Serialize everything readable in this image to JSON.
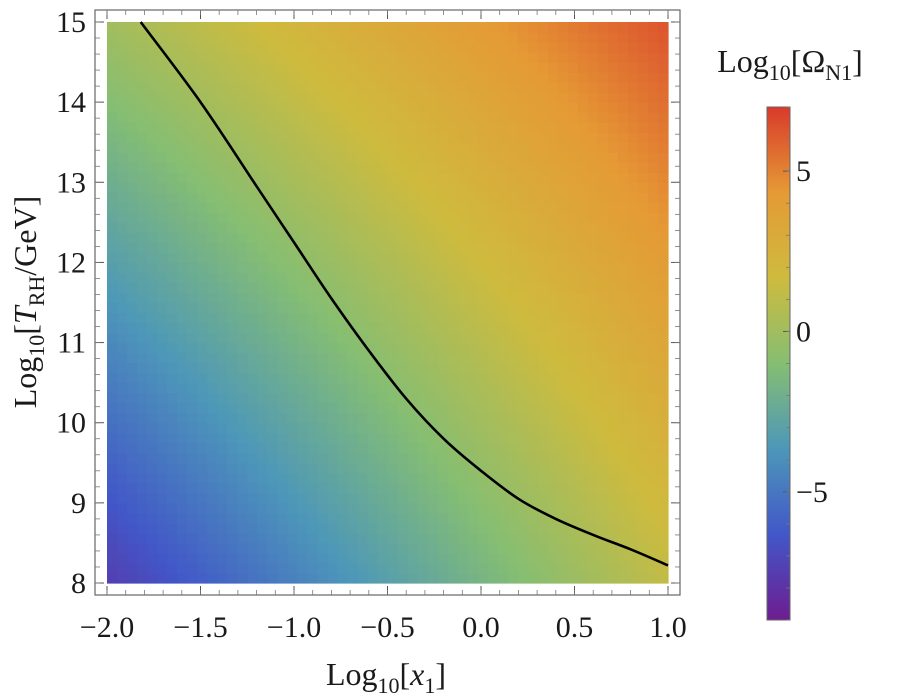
{
  "chart_data": {
    "type": "heatmap",
    "x_range": [
      -2.0,
      1.0
    ],
    "y_range": [
      8,
      15
    ],
    "x_ticks": [
      -2.0,
      -1.5,
      -1.0,
      -0.5,
      0.0,
      0.5,
      1.0
    ],
    "x_tick_labels": [
      "−2.0",
      "−1.5",
      "−1.0",
      "−0.5",
      "0.0",
      "0.5",
      "1.0"
    ],
    "y_ticks": [
      8,
      9,
      10,
      11,
      12,
      13,
      14,
      15
    ],
    "y_tick_labels": [
      "8",
      "9",
      "10",
      "11",
      "12",
      "13",
      "14",
      "15"
    ],
    "xlabel": {
      "base": "Log",
      "sub": "10",
      "open": "[",
      "var": "x",
      "var_sub": "1",
      "close": "]"
    },
    "ylabel": {
      "base": "Log",
      "sub": "10",
      "open": "[",
      "var": "T",
      "var_sub": "RH",
      "rest": "/GeV]"
    },
    "colorbar": {
      "title": {
        "base": "Log",
        "sub": "10",
        "open": "[Ω",
        "var_sub": "N1",
        "close": "]"
      },
      "range": [
        -9,
        7
      ],
      "ticks": [
        -5,
        0,
        5
      ],
      "tick_labels": [
        "−5",
        "0",
        "5"
      ],
      "colors": [
        "#6d1d90",
        "#4257c8",
        "#4d97b9",
        "#86be72",
        "#cebb3e",
        "#e59a35",
        "#d93a2b"
      ]
    },
    "field_corners": {
      "x_min_y_min": -7.5,
      "x_max_y_min": 1.2,
      "x_min_y_max": 0.0,
      "x_max_y_max": 6.3
    },
    "contour": {
      "x": [
        -1.82,
        -1.5,
        -1.2,
        -1.0,
        -0.8,
        -0.6,
        -0.4,
        -0.2,
        0.0,
        0.2,
        0.4,
        0.6,
        0.8,
        1.0
      ],
      "y": [
        15.0,
        14.0,
        12.95,
        12.25,
        11.55,
        10.9,
        10.3,
        9.8,
        9.4,
        9.05,
        8.8,
        8.6,
        8.42,
        8.22
      ]
    }
  }
}
